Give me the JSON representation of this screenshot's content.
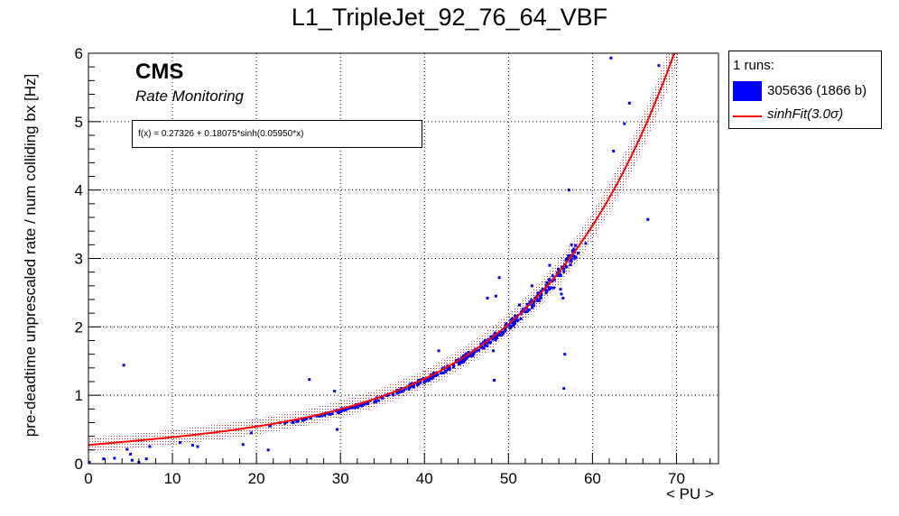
{
  "chart_data": {
    "type": "scatter",
    "title": "L1_TripleJet_92_76_64_VBF",
    "xlabel": "< PU >",
    "ylabel": "pre-deadtime unprescaled rate / num colliding bx [Hz]",
    "xlim": [
      0,
      75
    ],
    "ylim": [
      0,
      6
    ],
    "x_ticks": [
      "0",
      "10",
      "20",
      "30",
      "40",
      "50",
      "60",
      "70"
    ],
    "y_ticks": [
      "0",
      "1",
      "2",
      "3",
      "4",
      "5",
      "6"
    ],
    "grid": true,
    "legend_position": "outside-right",
    "annotations": {
      "experiment": "CMS",
      "subtitle": "Rate Monitoring",
      "fit_formula": "f(x) = 0.27326 + 0.18075*sinh(0.05950*x)"
    },
    "legend": {
      "header": "1 runs:",
      "entries": [
        {
          "label": "305636 (1866 b)",
          "color": "#0000ff",
          "kind": "box"
        },
        {
          "label": "sinhFit(3.0σ)",
          "color": "#ff0000",
          "kind": "line"
        }
      ]
    },
    "fit": {
      "a": 0.27326,
      "b": 0.18075,
      "c": 0.0595,
      "band": 0.1,
      "x_range": [
        0,
        70.2
      ],
      "color": "#ff0000"
    },
    "series": [
      {
        "name": "305636 (1866 b)",
        "color": "#0000ff",
        "dense_band": {
          "x_range": [
            21.5,
            58.5
          ],
          "count": 380
        },
        "points": [
          [
            0.1,
            0.02
          ],
          [
            1.8,
            0.07
          ],
          [
            3.1,
            0.08
          ],
          [
            4.2,
            1.44
          ],
          [
            4.6,
            0.21
          ],
          [
            5.0,
            0.14
          ],
          [
            5.2,
            0.05
          ],
          [
            6.0,
            0.02
          ],
          [
            6.9,
            0.07
          ],
          [
            7.3,
            0.25
          ],
          [
            10.9,
            0.31
          ],
          [
            12.4,
            0.27
          ],
          [
            13.0,
            0.25
          ],
          [
            18.4,
            0.28
          ],
          [
            19.4,
            0.45
          ],
          [
            21.4,
            0.2
          ],
          [
            26.3,
            1.23
          ],
          [
            29.3,
            1.06
          ],
          [
            29.6,
            0.5
          ],
          [
            39.3,
            1.17
          ],
          [
            41.7,
            1.65
          ],
          [
            47.5,
            2.42
          ],
          [
            48.2,
            1.65
          ],
          [
            48.3,
            1.22
          ],
          [
            48.5,
            2.45
          ],
          [
            48.9,
            2.72
          ],
          [
            51.3,
            2.32
          ],
          [
            52.8,
            2.6
          ],
          [
            53.5,
            2.47
          ],
          [
            54.9,
            2.9
          ],
          [
            55.4,
            2.57
          ],
          [
            55.8,
            2.75
          ],
          [
            56.2,
            2.55
          ],
          [
            56.3,
            2.48
          ],
          [
            56.5,
            2.42
          ],
          [
            56.6,
            1.1
          ],
          [
            56.7,
            1.6
          ],
          [
            57.0,
            3.0
          ],
          [
            57.2,
            4.0
          ],
          [
            57.5,
            3.2
          ],
          [
            59.2,
            3.22
          ],
          [
            62.2,
            5.93
          ],
          [
            62.5,
            4.57
          ],
          [
            63.8,
            4.97
          ],
          [
            64.4,
            5.27
          ],
          [
            66.6,
            3.57
          ],
          [
            67.9,
            5.82
          ]
        ]
      }
    ]
  }
}
